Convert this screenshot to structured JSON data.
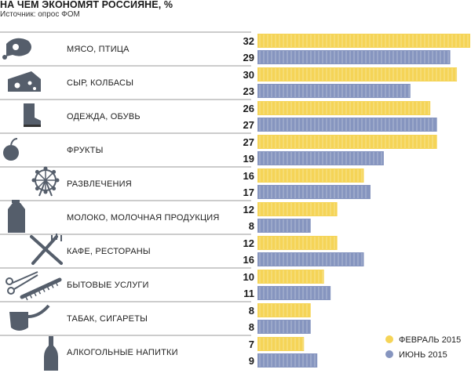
{
  "header": {
    "title": "НА ЧЕМ ЭКОНОМЯТ РОССИЯНЕ, %",
    "source": "Источник: опрос ФОМ"
  },
  "colors": {
    "feb": "#f5d457",
    "jun": "#8695bf",
    "divider": "#999999",
    "icon": "#555e6b"
  },
  "chart_data": {
    "type": "bar",
    "orientation": "horizontal",
    "title": "НА ЧЕМ ЭКОНОМЯТ РОССИЯНЕ, %",
    "xlim": [
      0,
      32
    ],
    "grid": false,
    "legend_position": "bottom-right",
    "categories": [
      "МЯСО, ПТИЦА",
      "СЫР, КОЛБАСЫ",
      "ОДЕЖДА, ОБУВЬ",
      "ФРУКТЫ",
      "РАЗВЛЕЧЕНИЯ",
      "МОЛОКО, МОЛОЧНАЯ ПРОДУКЦИЯ",
      "КАФЕ, РЕСТОРАНЫ",
      "БЫТОВЫЕ УСЛУГИ",
      "ТАБАК, СИГАРЕТЫ",
      "АЛКОГОЛЬНЫЕ НАПИТКИ"
    ],
    "icons": [
      "ham-icon",
      "cheese-icon",
      "boot-icon",
      "apple-icon",
      "ferris-wheel-icon",
      "milk-carton-icon",
      "fork-knife-icon",
      "scissors-comb-icon",
      "pipe-icon",
      "bottle-icon"
    ],
    "series": [
      {
        "name": "ФЕВРАЛЬ 2015",
        "values": [
          32,
          30,
          26,
          27,
          16,
          12,
          12,
          10,
          8,
          7
        ]
      },
      {
        "name": "ИЮНЬ 2015",
        "values": [
          29,
          23,
          27,
          19,
          17,
          8,
          16,
          11,
          8,
          9
        ]
      }
    ]
  }
}
